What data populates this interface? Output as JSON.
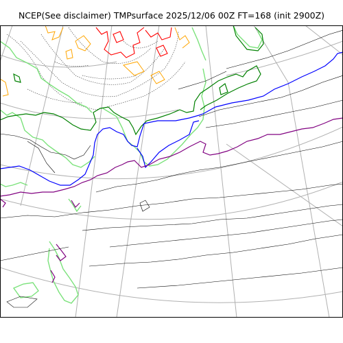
{
  "title": "NCEP(See disclaimer) TMPsurface 2025/12/06 00Z FT=168 (init 2900Z)",
  "map": {
    "projection": "polar-stereographic",
    "graticule": true,
    "contour_colors": {
      "grid": "#b0b0b0",
      "coastline_gray": "#000000",
      "cold_lightgreen": "#7be27b",
      "green": "#008000",
      "blue": "#0000ff",
      "purple": "#800080",
      "orange": "#ffa500",
      "red": "#ff0000",
      "dotted_gray": "#555555"
    }
  }
}
